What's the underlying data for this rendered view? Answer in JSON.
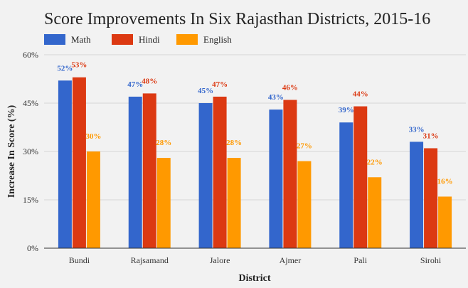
{
  "chart_data": {
    "type": "bar",
    "title": "Score Improvements In Six Rajasthan Districts, 2015-16",
    "xlabel": "District",
    "ylabel": "Increase In Score (%)",
    "ylim": [
      0,
      60
    ],
    "yticks": [
      "0%",
      "15%",
      "30%",
      "45%",
      "60%"
    ],
    "ytick_values": [
      0,
      15,
      30,
      45,
      60
    ],
    "grid": true,
    "legend_position": "top-left",
    "categories": [
      "Bundi",
      "Rajsamand",
      "Jalore",
      "Ajmer",
      "Pali",
      "Sirohi"
    ],
    "series": [
      {
        "name": "Math",
        "color": "#3366cc",
        "label_color": "#3366cc",
        "values": [
          52,
          47,
          45,
          43,
          39,
          33
        ],
        "labels": [
          "52%",
          "47%",
          "45%",
          "43%",
          "39%",
          "33%"
        ]
      },
      {
        "name": "Hindi",
        "color": "#dc3912",
        "label_color": "#dc3912",
        "values": [
          53,
          48,
          47,
          46,
          44,
          31
        ],
        "labels": [
          "53%",
          "48%",
          "47%",
          "46%",
          "44%",
          "31%"
        ]
      },
      {
        "name": "English",
        "color": "#ff9900",
        "label_color": "#ff9900",
        "values": [
          30,
          28,
          28,
          27,
          22,
          16
        ],
        "labels": [
          "30%",
          "28%",
          "28%",
          "27%",
          "22%",
          "16%"
        ]
      }
    ]
  }
}
